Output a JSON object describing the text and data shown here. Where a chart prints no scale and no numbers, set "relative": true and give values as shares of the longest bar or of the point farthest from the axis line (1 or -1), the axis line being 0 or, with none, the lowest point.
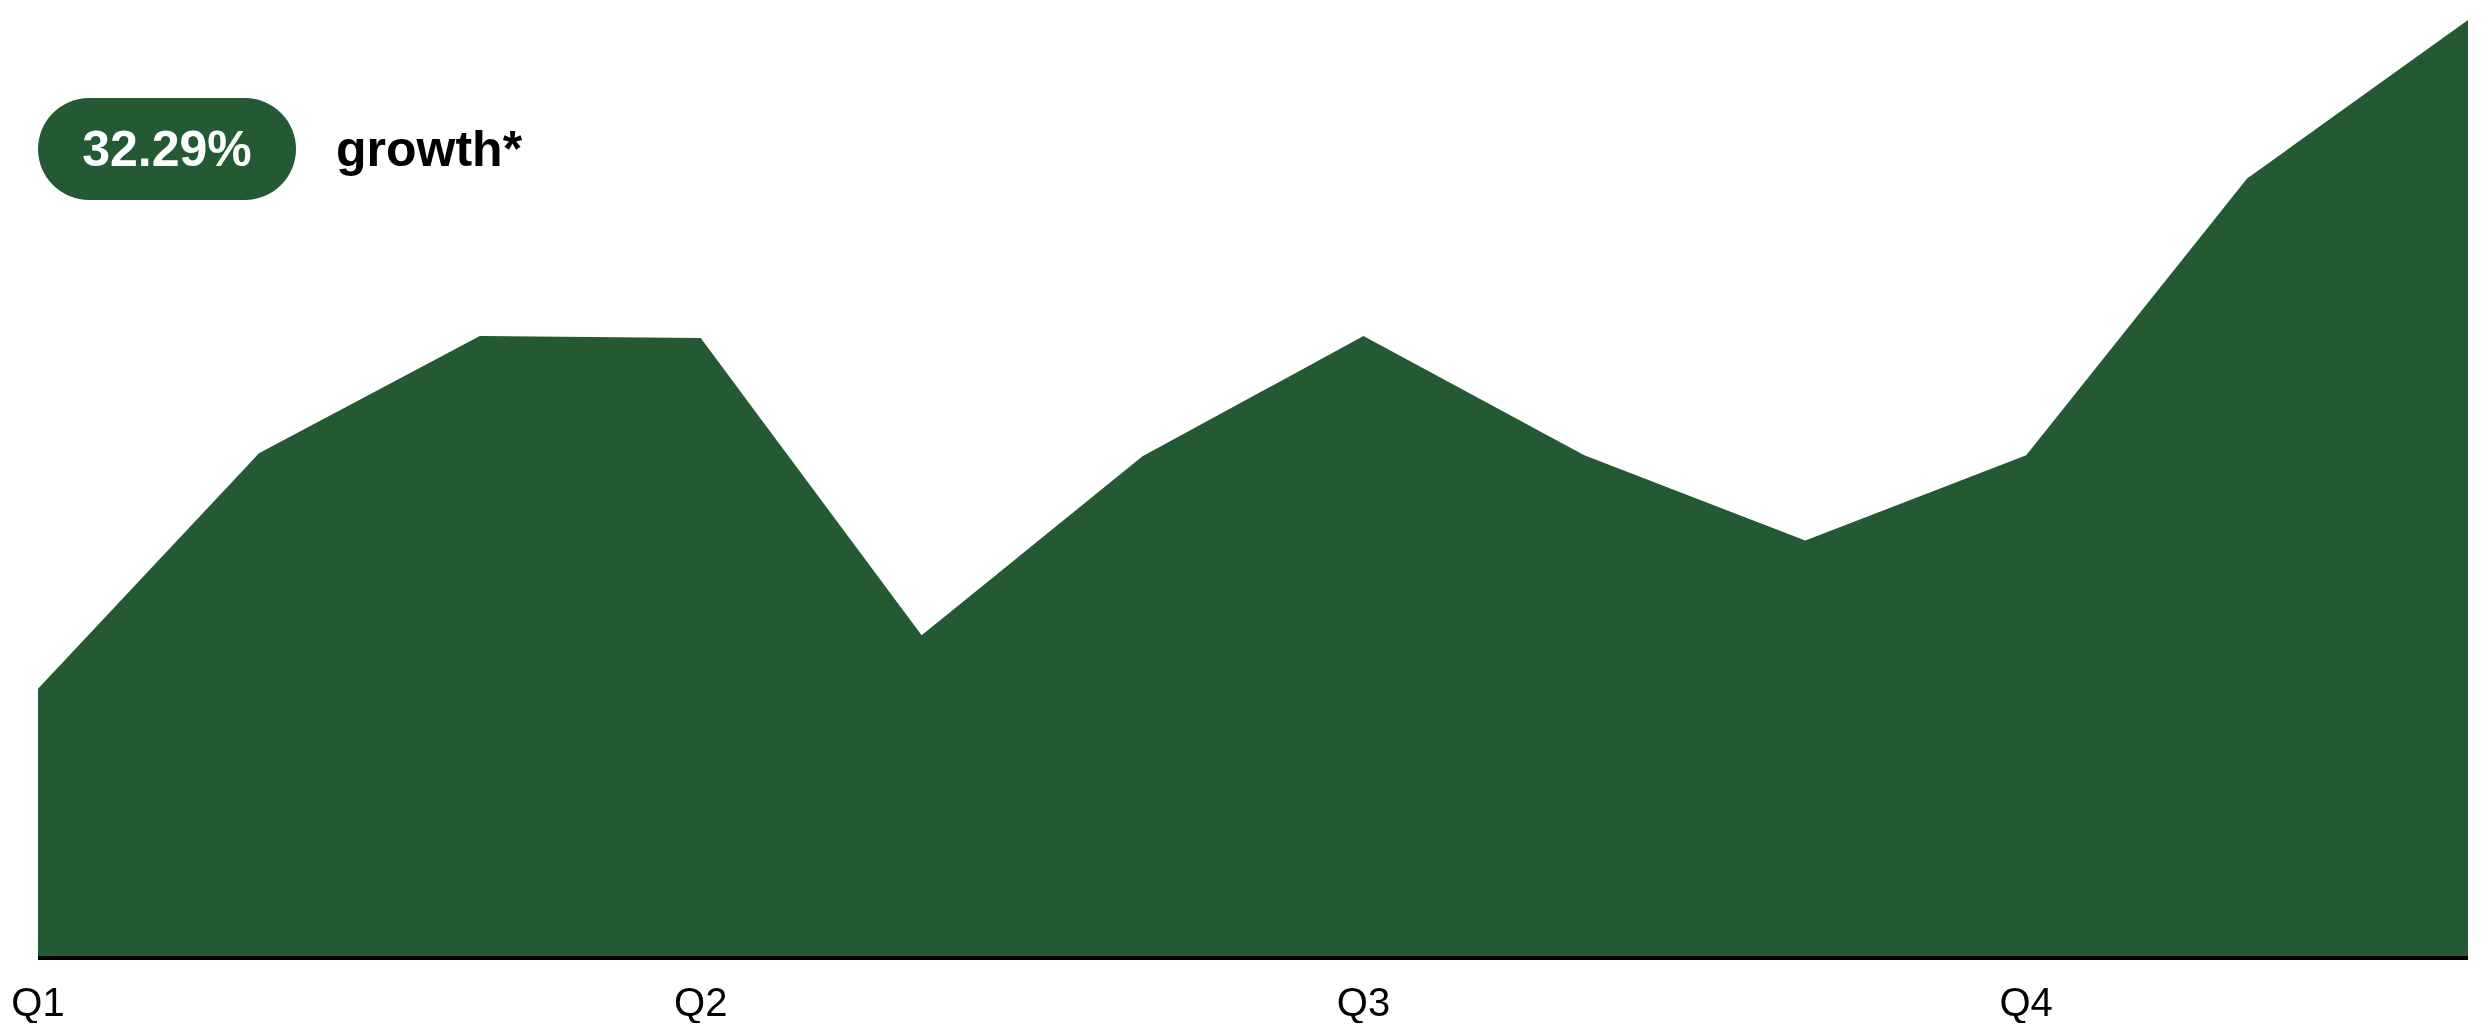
{
  "chart_data": {
    "type": "area",
    "title": "32.29% growth*",
    "relative": true,
    "categories": [
      "Q1",
      null,
      null,
      "Q2",
      null,
      null,
      "Q3",
      null,
      null,
      "Q4",
      null,
      null
    ],
    "series": [
      {
        "color": "#235a34",
        "values": [
          0.287,
          0.538,
          0.663,
          0.661,
          0.344,
          0.535,
          0.663,
          0.536,
          0.445,
          0.536,
          0.831,
          1
        ]
      }
    ]
  }
}
